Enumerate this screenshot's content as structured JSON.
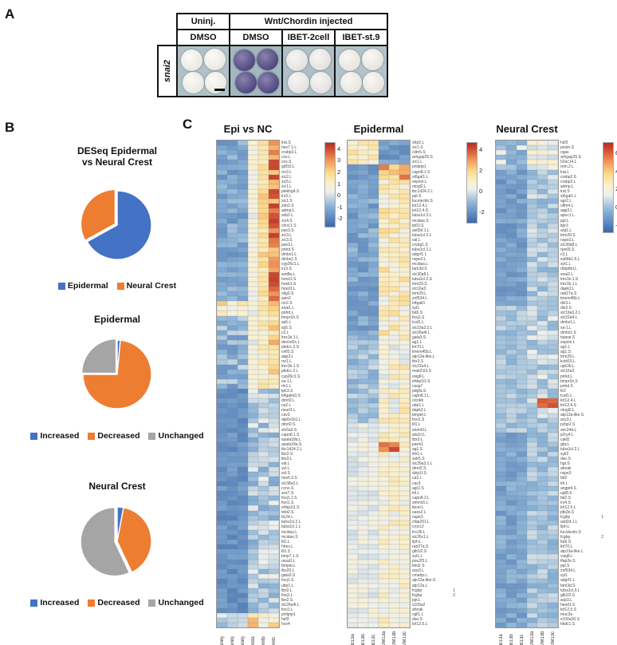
{
  "panel_a": {
    "letter": "A",
    "row_label": "snai2",
    "header_top": [
      "Uninj.",
      "Wnt/Chordin injected"
    ],
    "header_cols": [
      "DMSO",
      "DMSO",
      "IBET-2cell",
      "IBET-st.9"
    ],
    "conditions": [
      {
        "name": "uninj-dmso",
        "bg": "#b0c2c8",
        "embryo_light": "#fbfaf7",
        "embryo_base": "#eae8e0",
        "stain": "none",
        "has_scalebar": true
      },
      {
        "name": "wnt-chordin-dmso",
        "bg": "#a3b7bf",
        "embryo_light": "#8a82ad",
        "embryo_base": "#4f4880",
        "stain": "strong-purple",
        "has_scalebar": false
      },
      {
        "name": "wnt-chordin-ibet-2cell",
        "bg": "#aebfc6",
        "embryo_light": "#f7f5f3",
        "embryo_base": "#e4e1e0",
        "stain": "none",
        "has_scalebar": false
      },
      {
        "name": "wnt-chordin-ibet-st9",
        "bg": "#b2c3c9",
        "embryo_light": "#f9f7f4",
        "embryo_base": "#e8e5df",
        "stain": "none",
        "has_scalebar": false
      }
    ]
  },
  "panel_b": {
    "letter": "B",
    "colors": {
      "blue": "#4472c4",
      "orange": "#ed7d31",
      "gray": "#a5a5a5"
    },
    "chart_data": [
      {
        "type": "pie",
        "title_lines": [
          "DESeq Epidermal",
          "vs Neural Crest"
        ],
        "slices": [
          {
            "label": "Epidermal",
            "value": 67,
            "color": "#4472c4",
            "explode": 0
          },
          {
            "label": "Neural Crest",
            "value": 33,
            "color": "#ed7d31",
            "explode": 3
          }
        ],
        "legend_position": "bottom"
      },
      {
        "type": "pie",
        "title_lines": [
          "Epidermal"
        ],
        "slices": [
          {
            "label": "Increased",
            "value": 1.5,
            "color": "#4472c4",
            "explode": 0
          },
          {
            "label": "Decreased",
            "value": 73.5,
            "color": "#ed7d31",
            "explode": 0
          },
          {
            "label": "Unchanged",
            "value": 25,
            "color": "#a5a5a5",
            "explode": 2
          }
        ],
        "legend_position": "bottom"
      },
      {
        "type": "pie",
        "title_lines": [
          "Neural Crest"
        ],
        "slices": [
          {
            "label": "Increased",
            "value": 3,
            "color": "#4472c4",
            "explode": 0
          },
          {
            "label": "Decreased",
            "value": 40,
            "color": "#ed7d31",
            "explode": 0
          },
          {
            "label": "Unchanged",
            "value": 57,
            "color": "#a5a5a5",
            "explode": 3
          }
        ],
        "legend_position": "bottom"
      }
    ]
  },
  "panel_c": {
    "letter": "C",
    "colormap_stops": [
      [
        0,
        "#3a67ab"
      ],
      [
        0.25,
        "#8db5d8"
      ],
      [
        0.42,
        "#eef0ec"
      ],
      [
        0.52,
        "#faf0cd"
      ],
      [
        0.65,
        "#fdd98a"
      ],
      [
        0.78,
        "#f3995b"
      ],
      [
        0.9,
        "#d95835"
      ],
      [
        1,
        "#b32c26"
      ]
    ],
    "chart_data": [
      {
        "type": "heatmap",
        "title": "Epi vs NC",
        "columns": [
          "uninj",
          "uninj",
          "uninj",
          "wnta",
          "wntb",
          "wntc"
        ],
        "rows": [
          "lrat.S",
          "hes7.1.L",
          "crabp2.L",
          "cnx.L",
          "cnx.S",
          "gdf10.L",
          "ror2.L",
          "zic2.L",
          "zic5.L",
          "zic1.L",
          "plekhg4.S",
          "irx3.L",
          "zic1.S",
          "zeb2.S",
          "admp.L",
          "zeb2.L",
          "zic4.S",
          "chrd.1.S",
          "pax3.S",
          "zic3.L",
          "zic3.S",
          "pax3.L",
          "pnhd.S",
          "dmbx1.L",
          "dmbx1.S",
          "cyp26c1.L",
          "irx3.S",
          "wnt8a.L",
          "hoxd1.S",
          "hoxb1.S",
          "hoxd1.L",
          "olig3.S",
          "axin2",
          "ror2.S",
          "snai1.L",
          "pnhd.L",
          "bmpr1b.S",
          "sp5.L",
          "sp5.S",
          "c3.L",
          "lmx1b.1.L",
          "dennd2c.L",
          "pkdcc.2.S",
          "celf3.S",
          "aqp3.L",
          "ror1.L",
          "lmx1b.1.S",
          "pkdcc.2.L",
          "cyp26c1.S",
          "xa-1.L",
          "rln1.L",
          "tp63.S",
          "b4galnt3.S",
          "dmrt2.L",
          "ca2.L",
          "neurl1.L",
          "cav3",
          "atp6v1b1.L",
          "dmrt2.S",
          "slc6a3.S",
          "capn8.1.S",
          "spata18a.L",
          "spata18a.S",
          "tbc1d24.2.L",
          "tbx3.S",
          "tbx3.L",
          "val.L",
          "szl.L",
          "szl.S",
          "hes5.3.S",
          "slc38a2.L",
          "ccno.S",
          "sox7.S",
          "foxj1.2.S",
          "foxi1.S",
          "ehbp1l1.S",
          "tekt2.S",
          "ttc24.L",
          "tuba1cl.2.L",
          "tuba1cl.1.L",
          "mcidas.L",
          "mcidas.S",
          "tll1.L",
          "hhex.L",
          "tll1.S",
          "bmp7.1.S",
          "rasal1.L",
          "bmper.L",
          "tbx20.L",
          "gata3.S",
          "foxj1.S",
          "ubp1.L",
          "tbx2.L",
          "foxj1.L",
          "tbx2.S",
          "slc26a4l.L",
          "foxi1.L",
          "pnliprp1",
          "hsf3",
          "hcn4"
        ],
        "annotations": {},
        "colorbar_ticks": [
          4,
          3,
          2,
          1,
          0,
          -1,
          -2
        ],
        "vmin": -2.6,
        "vmax": 4.6,
        "value_blocks": [
          {
            "r0": 0,
            "r1": 33,
            "c0": 0,
            "c1": 2,
            "base": -1.1,
            "jit": 0.55
          },
          {
            "r0": 0,
            "r1": 33,
            "c0": 3,
            "c1": 3,
            "base": 0.7,
            "jit": 0.5
          },
          {
            "r0": 0,
            "r1": 33,
            "c0": 4,
            "c1": 4,
            "base": 1.8,
            "jit": 0.6
          },
          {
            "r0": 0,
            "r1": 33,
            "c0": 5,
            "c1": 5,
            "base": 3.3,
            "jit": 1.0
          },
          {
            "r0": 33,
            "r1": 51,
            "c0": 0,
            "c1": 2,
            "base": -0.8,
            "jit": 0.8
          },
          {
            "r0": 33,
            "r1": 51,
            "c0": 3,
            "c1": 3,
            "base": 0.6,
            "jit": 0.5
          },
          {
            "r0": 33,
            "r1": 51,
            "c0": 4,
            "c1": 4,
            "base": 1.3,
            "jit": 0.6
          },
          {
            "r0": 33,
            "r1": 51,
            "c0": 5,
            "c1": 5,
            "base": 2.0,
            "jit": 0.8
          },
          {
            "r0": 33,
            "r1": 36,
            "c0": 0,
            "c1": 2,
            "base": 1.2,
            "jit": 1.2
          },
          {
            "r0": 51,
            "r1": 97,
            "c0": 0,
            "c1": 2,
            "base": -1.6,
            "jit": 0.4
          },
          {
            "r0": 51,
            "r1": 97,
            "c0": 3,
            "c1": 5,
            "base": -0.3,
            "jit": 0.8
          },
          {
            "r0": 97,
            "r1": 100,
            "c0": 0,
            "c1": 2,
            "base": -0.2,
            "jit": 0.6
          },
          {
            "r0": 97,
            "r1": 100,
            "c0": 3,
            "c1": 5,
            "base": 1.6,
            "jit": 1.2
          }
        ]
      },
      {
        "type": "heatmap",
        "title": "Epidermal",
        "columns": [
          "IB13a",
          "IB13b",
          "IB13c",
          "DM13a",
          "DM13b",
          "DM13c"
        ],
        "rows": [
          "sfrp2.L",
          "zic1.S",
          "cldn5.S",
          "arhgap25.S",
          "zic1.L",
          "pnliprp1",
          "capn8.1.S",
          "st6gal1.L",
          "xepsin.L",
          "otogl2.L",
          "tbc1d24.2.L",
          "ppl.S",
          "fucolectin.S",
          "krt12.4.L",
          "krt12.4.S",
          "tuba1cl.3.L",
          "mcidas.S",
          "tp63.S",
          "astl2d.1.L",
          "tuba1cl.2.L",
          "val.L",
          "crybg1.S",
          "tuba1cl.1.L",
          "adgrf1.L",
          "nxpe2.L",
          "mcidas.L",
          "fam3d.S",
          "slc30a8.L",
          "tuba1cl.2.S",
          "trim29.S",
          "slc16a3",
          "trim29.L",
          "znf534.L",
          "b4galt1",
          "syt1",
          "fut6.S",
          "foxj1.S",
          "tcaf1.L",
          "slc19a3.2.L",
          "slc26a4l.L",
          "gata3.S",
          "ag1.L",
          "krt70.L",
          "tmem45b.L",
          "atp13a-like.L",
          "tbx3.S",
          "slc22a4.L",
          "mab21l3.S",
          "vsig8.L",
          "ehbp1l1.S",
          "casp7",
          "pdgfa.S",
          "capn8.1.L",
          "clcnkb",
          "ubp1.L",
          "dapk2.L",
          "bmper.L",
          "foxi1.S",
          "tll1.L",
          "stoml3.L",
          "als2cl.L",
          "tbx3.L",
          "parm1",
          "ag1.S",
          "itln1.L",
          "sstr5.S",
          "slc35a3.1.L",
          "dmrt2.S",
          "dzip1l.S",
          "ca2.L",
          "cav3",
          "agr2.S",
          "tril.L",
          "capn8.2.L",
          "stmnd1.L",
          "tbcel.L",
          "saxo2.L",
          "nxpe3",
          "cfap251.L",
          "crocc2",
          "lrrc36.L",
          "slc35c1.L",
          "liph.L",
          "rab27a.S",
          "glb1l2.S",
          "syt1.L",
          "pou2f3.L",
          "tekt2.S",
          "acp3.L",
          "cmahp.L",
          "atp13a-like.S",
          "atp12a.L",
          "fcgbp",
          "fcgbp",
          "ppl.L",
          "s100a2",
          "ahnak",
          "vgll1.L",
          "dse.S",
          "krt12.5.L"
        ],
        "annotations": {
          "92": "1",
          "93": "2"
        },
        "colorbar_ticks": [
          4,
          2,
          0,
          -2
        ],
        "vmin": -2.9,
        "vmax": 4.8,
        "value_blocks": [
          {
            "r0": 0,
            "r1": 5,
            "c0": 0,
            "c1": 2,
            "base": 1.3,
            "jit": 0.6
          },
          {
            "r0": 0,
            "r1": 5,
            "c0": 3,
            "c1": 5,
            "base": -1.6,
            "jit": 0.5
          },
          {
            "r0": 5,
            "r1": 8,
            "c0": 0,
            "c1": 2,
            "base": -1.7,
            "jit": 0.4
          },
          {
            "r0": 5,
            "r1": 8,
            "c0": 3,
            "c1": 5,
            "base": 2.6,
            "jit": 1.3
          },
          {
            "r0": 8,
            "r1": 12,
            "c0": 0,
            "c1": 2,
            "base": -1.2,
            "jit": 0.5
          },
          {
            "r0": 8,
            "r1": 12,
            "c0": 3,
            "c1": 5,
            "base": 1.2,
            "jit": 0.9
          },
          {
            "r0": 12,
            "r1": 40,
            "c0": 0,
            "c1": 2,
            "base": -1.3,
            "jit": 0.6
          },
          {
            "r0": 12,
            "r1": 40,
            "c0": 3,
            "c1": 5,
            "base": 1.2,
            "jit": 0.9
          },
          {
            "r0": 40,
            "r1": 58,
            "c0": 0,
            "c1": 2,
            "base": -0.7,
            "jit": 0.6
          },
          {
            "r0": 40,
            "r1": 58,
            "c0": 3,
            "c1": 5,
            "base": 0.9,
            "jit": 0.9
          },
          {
            "r0": 58,
            "r1": 100,
            "c0": 0,
            "c1": 2,
            "base": 0.4,
            "jit": 0.5
          },
          {
            "r0": 58,
            "r1": 100,
            "c0": 3,
            "c1": 5,
            "base": 0.9,
            "jit": 0.7
          },
          {
            "r0": 62,
            "r1": 64,
            "c0": 3,
            "c1": 4,
            "base": 3.8,
            "jit": 0.6
          }
        ]
      },
      {
        "type": "heatmap",
        "title": "Neural Crest",
        "columns": [
          "IB13a",
          "IB13b",
          "IB13c",
          "DM13a",
          "DM13b",
          "DM13c"
        ],
        "rows": [
          "hsf3",
          "postn.S",
          "cgas",
          "arhgap25.S",
          "h2ac14.L",
          "retn.2.L",
          "lrat.L",
          "crabp2.S",
          "crabp2.L",
          "admp.L",
          "lrat.S",
          "st6gal1.L",
          "agr2.L",
          "olfm4.L",
          "aqp3.L",
          "apoc1.L",
          "ppl.L",
          "itpr3",
          "arg1.L",
          "trim29.S",
          "nxpe2.L",
          "slc30a8.L",
          "rpe65.S",
          "c3.L",
          "sult6b1.5.L",
          "syt1.L",
          "rbbp8nl.L",
          "snai2.L",
          "lmx1b.1.S",
          "lmx1b.1.L",
          "dapk2.L",
          "rab27a.S",
          "tmem45b.L",
          "dlx3.L",
          "dlx3.S",
          "slc19a3.2.L",
          "slc22a4.L",
          "dmbx1.L",
          "xa-1.L",
          "dmbx1.S",
          "tspear.S",
          "xepsin.L",
          "ag1.L",
          "ag1.S",
          "trim29.L",
          "kctd15.L",
          "upk3b.L",
          "slc16a3",
          "pnhd.L",
          "bmpr1b.S",
          "pnhd.S",
          "tlr2",
          "tcaf1.L",
          "krt12.4.L",
          "krt12.4.S",
          "otogl2.L",
          "atp13a-like.S",
          "acy3.L",
          "pcbp2.S",
          "sec24d.L",
          "p2ry4.L",
          "cald1",
          "gby.L",
          "tuba1cl.2.L",
          "sytl2",
          "dse.S",
          "hgt.S",
          "ahnak",
          "nxpe3",
          "fat2",
          "tril.L",
          "angpt4.S",
          "ugt8.S",
          "fat2.S",
          "irx4.S",
          "krt12.5.L",
          "ptk2b.S",
          "fcgbp",
          "astl2d.1.L",
          "liph.L",
          "fucolectin.S",
          "fcgbp",
          "fut6.S",
          "krt70.L",
          "atp13a-like.L",
          "vsig8.L",
          "tfap2e.S",
          "ppl.S",
          "znf534.L",
          "syt1",
          "adgrf1.L",
          "fam3d.S",
          "tuba1cl.3.L",
          "glb1l2.S",
          "acp3.L",
          "hexd1.S",
          "krt12.5.S",
          "muc3a",
          "s100a10.S",
          "hkdc1.S"
        ],
        "annotations": {
          "77": "1",
          "81": "2"
        },
        "colorbar_ticks": [
          6,
          4,
          2,
          0,
          -2
        ],
        "vmin": -2.6,
        "vmax": 7.2,
        "value_blocks": [
          {
            "r0": 0,
            "r1": 6,
            "c0": 0,
            "c1": 2,
            "base": 0.6,
            "jit": 1.4
          },
          {
            "r0": 0,
            "r1": 6,
            "c0": 3,
            "c1": 5,
            "base": 1.6,
            "jit": 1.4
          },
          {
            "r0": 6,
            "r1": 34,
            "c0": 0,
            "c1": 2,
            "base": -0.8,
            "jit": 0.6
          },
          {
            "r0": 6,
            "r1": 34,
            "c0": 3,
            "c1": 5,
            "base": 0.5,
            "jit": 0.8
          },
          {
            "r0": 34,
            "r1": 60,
            "c0": 0,
            "c1": 2,
            "base": 0.3,
            "jit": 0.6
          },
          {
            "r0": 34,
            "r1": 60,
            "c0": 3,
            "c1": 5,
            "base": 0.7,
            "jit": 0.9
          },
          {
            "r0": 53,
            "r1": 55,
            "c0": 4,
            "c1": 5,
            "base": 5.8,
            "jit": 0.8
          },
          {
            "r0": 60,
            "r1": 100,
            "c0": 0,
            "c1": 2,
            "base": -0.6,
            "jit": 0.6
          },
          {
            "r0": 60,
            "r1": 100,
            "c0": 3,
            "c1": 5,
            "base": 0.3,
            "jit": 0.7
          }
        ]
      }
    ]
  }
}
